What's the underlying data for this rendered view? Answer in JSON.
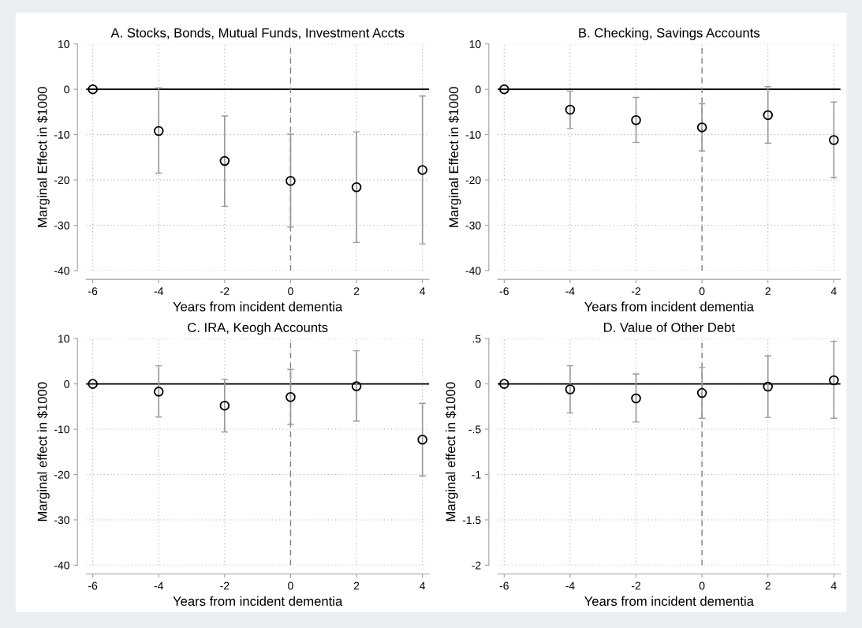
{
  "chart_data": [
    {
      "type": "scatter",
      "title": "A. Stocks, Bonds, Mutual Funds, Investment Accts",
      "xlabel": "Years from incident dementia",
      "ylabel": "Marginal Effect in $1000",
      "x": [
        -6,
        -4,
        -2,
        0,
        2,
        4
      ],
      "series": [
        {
          "color": "#000000",
          "values": [
            0,
            -9.2,
            -15.8,
            -20.2,
            -21.6,
            -17.8
          ],
          "errors": [
            null,
            [
              -18.5,
              0.3
            ],
            [
              -25.8,
              -5.9
            ],
            [
              -30.4,
              -9.9
            ],
            [
              -33.8,
              -9.4
            ],
            [
              -34.1,
              -1.5
            ]
          ]
        }
      ],
      "xlim": [
        -6.2,
        4.2
      ],
      "ylim": [
        -40,
        10
      ],
      "xticks": [
        -6,
        -4,
        -2,
        0,
        2,
        4
      ],
      "yticks": [
        -40,
        -30,
        -20,
        -10,
        0,
        10
      ],
      "grid": true,
      "marker": "circle",
      "ref_lines": [
        {
          "axis": "y",
          "value": 0,
          "color": "#000000",
          "line_style": "solid"
        },
        {
          "axis": "x",
          "value": 0,
          "color": "#808080",
          "line_style": "dashed"
        }
      ]
    },
    {
      "type": "scatter",
      "title": "B. Checking, Savings Accounts",
      "xlabel": "Years from incident dementia",
      "ylabel": "Marginal Effect in $1000",
      "x": [
        -6,
        -4,
        -2,
        0,
        2,
        4
      ],
      "series": [
        {
          "color": "#000000",
          "values": [
            0,
            -4.5,
            -6.8,
            -8.4,
            -5.7,
            -11.2
          ],
          "errors": [
            null,
            [
              -8.6,
              -0.4
            ],
            [
              -11.7,
              -1.8
            ],
            [
              -13.6,
              -3.2
            ],
            [
              -11.9,
              0.6
            ],
            [
              -19.5,
              -2.8
            ]
          ]
        }
      ],
      "xlim": [
        -6.2,
        4.2
      ],
      "ylim": [
        -40,
        10
      ],
      "xticks": [
        -6,
        -4,
        -2,
        0,
        2,
        4
      ],
      "yticks": [
        -40,
        -30,
        -20,
        -10,
        0,
        10
      ],
      "grid": true,
      "marker": "circle",
      "ref_lines": [
        {
          "axis": "y",
          "value": 0,
          "color": "#000000",
          "line_style": "solid"
        },
        {
          "axis": "x",
          "value": 0,
          "color": "#808080",
          "line_style": "dashed"
        }
      ]
    },
    {
      "type": "scatter",
      "title": "C. IRA, Keogh Accounts",
      "xlabel": "Years from incident dementia",
      "ylabel": "Marginal effect in $1000",
      "x": [
        -6,
        -4,
        -2,
        0,
        2,
        4
      ],
      "series": [
        {
          "color": "#000000",
          "values": [
            0,
            -1.7,
            -4.8,
            -2.9,
            -0.5,
            -12.3
          ],
          "errors": [
            null,
            [
              -7.3,
              4.0
            ],
            [
              -10.6,
              1.0
            ],
            [
              -8.9,
              3.2
            ],
            [
              -8.2,
              7.3
            ],
            [
              -20.3,
              -4.3
            ]
          ]
        }
      ],
      "xlim": [
        -6.2,
        4.2
      ],
      "ylim": [
        -40,
        10
      ],
      "xticks": [
        -6,
        -4,
        -2,
        0,
        2,
        4
      ],
      "yticks": [
        -40,
        -30,
        -20,
        -10,
        0,
        10
      ],
      "grid": true,
      "marker": "circle",
      "ref_lines": [
        {
          "axis": "y",
          "value": 0,
          "color": "#000000",
          "line_style": "solid"
        },
        {
          "axis": "x",
          "value": 0,
          "color": "#808080",
          "line_style": "dashed"
        }
      ]
    },
    {
      "type": "scatter",
      "title": "D. Value of Other Debt",
      "xlabel": "Years from incident dementia",
      "ylabel": "Marginal effect in $1000",
      "x": [
        -6,
        -4,
        -2,
        0,
        2,
        4
      ],
      "series": [
        {
          "color": "#000000",
          "values": [
            0,
            -0.06,
            -0.16,
            -0.1,
            -0.03,
            0.04
          ],
          "errors": [
            null,
            [
              -0.32,
              0.2
            ],
            [
              -0.42,
              0.11
            ],
            [
              -0.38,
              0.18
            ],
            [
              -0.37,
              0.31
            ],
            [
              -0.38,
              0.47
            ]
          ]
        }
      ],
      "xlim": [
        -6.2,
        4.2
      ],
      "ylim": [
        -2,
        0.5
      ],
      "xticks": [
        -6,
        -4,
        -2,
        0,
        2,
        4
      ],
      "yticks": [
        {
          "value": -2,
          "label": "-2"
        },
        {
          "value": -1.5,
          "label": "-1.5"
        },
        {
          "value": -1,
          "label": "-1"
        },
        {
          "value": -0.5,
          "label": "-.5"
        },
        {
          "value": 0,
          "label": "0"
        },
        {
          "value": 0.5,
          "label": ".5"
        }
      ],
      "grid": true,
      "marker": "circle",
      "ref_lines": [
        {
          "axis": "y",
          "value": 0,
          "color": "#000000",
          "line_style": "solid"
        },
        {
          "axis": "x",
          "value": 0,
          "color": "#808080",
          "line_style": "dashed"
        }
      ]
    }
  ]
}
